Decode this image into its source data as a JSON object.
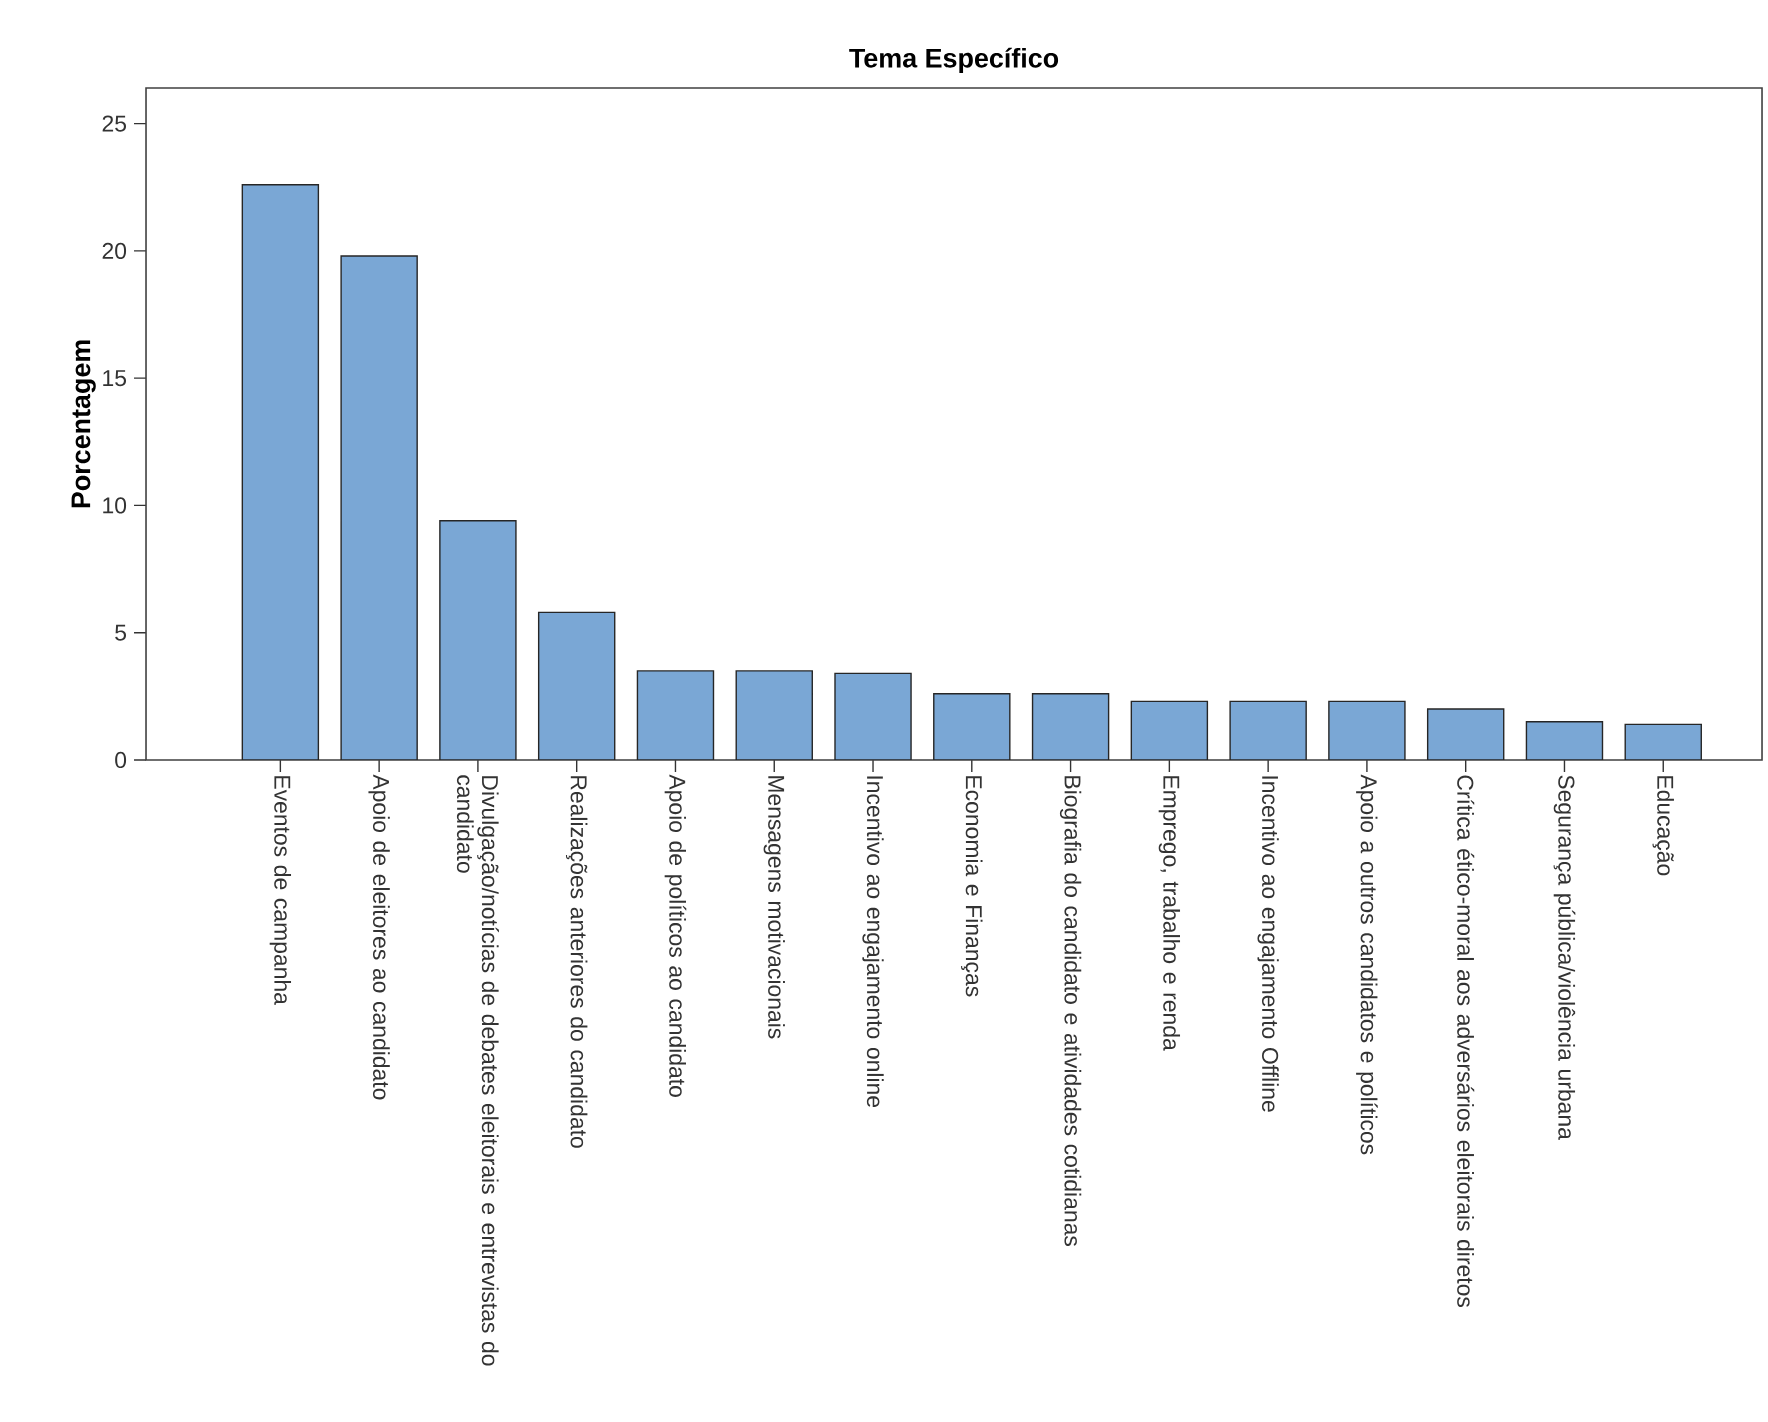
{
  "chart_data": {
    "type": "bar",
    "title": "Tema Específico",
    "ylabel": "Porcentagem",
    "categories": [
      "Eventos de campanha",
      "Apoio de eleitores ao candidato",
      "Divulgação/notícias de debates eleitorais e entrevistas do candidato",
      "Realizações anteriores do candidato",
      "Apoio de políticos ao candidato",
      "Mensagens motivacionais",
      "Incentivo ao engajamento online",
      "Economia e Finanças",
      "Biografia do candidato e atividades cotidianas",
      "Emprego, trabalho e renda",
      "Incentivo ao engajamento Offline",
      "Apoio a outros candidatos e políticos",
      "Crítica ético-moral aos adversários eleitorais diretos",
      "Segurança pública/violência urbana",
      "Educação"
    ],
    "values": [
      22.6,
      19.8,
      9.4,
      5.8,
      3.5,
      3.5,
      3.4,
      2.6,
      2.6,
      2.3,
      2.3,
      2.3,
      2.0,
      1.5,
      1.4
    ],
    "color": "#7aa7d5",
    "ylim": [
      0,
      26.4
    ],
    "yticks": [
      0,
      5,
      10,
      15,
      20,
      25
    ]
  }
}
